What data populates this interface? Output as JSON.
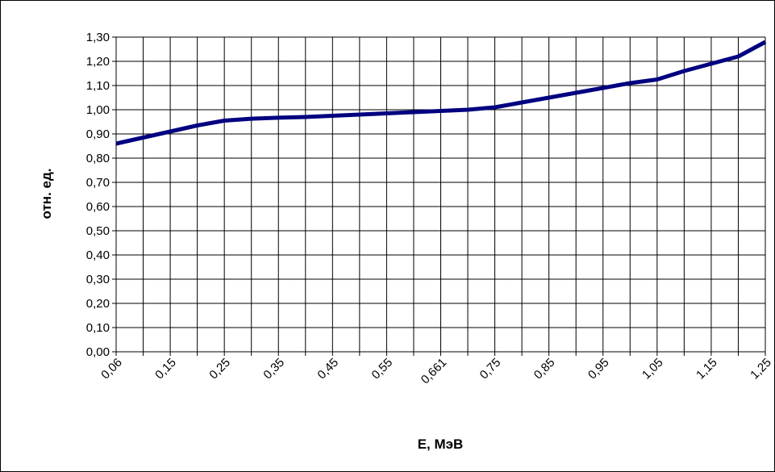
{
  "chart_data": {
    "type": "line",
    "title": "",
    "xlabel": "E, МэВ",
    "ylabel": "отн. ед.",
    "ylim": [
      0,
      1.3
    ],
    "y_ticks": [
      "0,00",
      "0,10",
      "0,20",
      "0,30",
      "0,40",
      "0,50",
      "0,60",
      "0,70",
      "0,80",
      "0,90",
      "1,00",
      "1,10",
      "1,20",
      "1,30"
    ],
    "x_tick_labels": [
      "0,06",
      "0,15",
      "0,25",
      "0,35",
      "0,45",
      "0,55",
      "0,661",
      "0,75",
      "0,85",
      "0,95",
      "1,05",
      "1,15",
      "1,25"
    ],
    "grid": true,
    "legend": "none",
    "line_color": "#000080",
    "series": [
      {
        "x": [
          "0,06",
          "0,1",
          "0,15",
          "0,2",
          "0,25",
          "0,3",
          "0,35",
          "0,4",
          "0,45",
          "0,5",
          "0,55",
          "0,6",
          "0,661",
          "0,7",
          "0,75",
          "0,8",
          "0,85",
          "0,9",
          "0,95",
          "1",
          "1,05",
          "1,1",
          "1,15",
          "1,2",
          "1,25"
        ],
        "values": [
          0.86,
          0.885,
          0.91,
          0.935,
          0.955,
          0.963,
          0.967,
          0.97,
          0.975,
          0.98,
          0.985,
          0.99,
          0.995,
          1.0,
          1.01,
          1.03,
          1.05,
          1.07,
          1.09,
          1.11,
          1.125,
          1.16,
          1.19,
          1.22,
          1.28
        ]
      }
    ]
  }
}
